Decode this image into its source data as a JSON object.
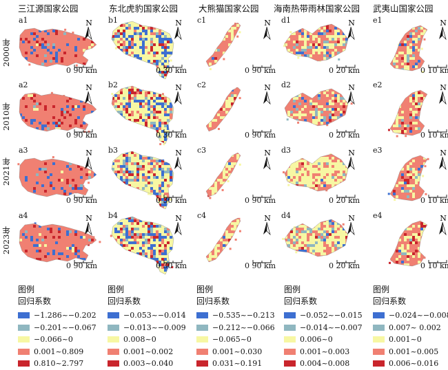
{
  "colors": [
    "#3d6fd1",
    "#8fb7c0",
    "#f7f7a3",
    "#f08072",
    "#c9252c"
  ],
  "parks": [
    {
      "id": "sjy",
      "title": "三江源国家公园",
      "letter": "a",
      "scale_text": "0 90 km",
      "legend": {
        "title": "图例",
        "subtitle": "回归系数",
        "items": [
          "−1.286~−0.202",
          "−0.201~−0.067",
          "−0.066~0",
          "0.001~0.809",
          "0.810~2.797"
        ]
      }
    },
    {
      "id": "dbhb",
      "title": "东北虎豹国家公园",
      "letter": "b",
      "scale_text": "0 30 km",
      "legend": {
        "title": "图例",
        "subtitle": "回归系数",
        "items": [
          "−0.053~−0.014",
          "−0.013~−0.009",
          "0.008~0",
          "0.001~0.002",
          "0.003~0.040"
        ]
      }
    },
    {
      "id": "dxm",
      "title": "大熊猫国家公园",
      "letter": "c",
      "scale_text": "0 90 km",
      "legend": {
        "title": "图例",
        "subtitle": "回归系数",
        "items": [
          "−0.535~−0.213",
          "−0.212~−0.066",
          "−0.065~0",
          "0.001~0.030",
          "0.031~0.191"
        ]
      }
    },
    {
      "id": "hnrd",
      "title": "海南热带雨林国家公园",
      "letter": "d",
      "scale_text": "0 20 km",
      "legend": {
        "title": "图例",
        "subtitle": "回归系数",
        "items": [
          "−0.052~−0.015",
          "−0.014~−0.007",
          "0.006~0",
          "0.001~0.003",
          "0.004~0.008"
        ]
      }
    },
    {
      "id": "wys",
      "title": "武夷山国家公园",
      "letter": "e",
      "scale_text": "0 10 km",
      "legend": {
        "title": "图例",
        "subtitle": "回归系数",
        "items": [
          "−0.024~−0.008",
          "0.007~ 0.002",
          "0.001~0",
          "0.001~0.005",
          "0.006~0.016"
        ]
      }
    }
  ],
  "years": [
    {
      "num": "1",
      "label": "2000年"
    },
    {
      "num": "2",
      "label": "2010年"
    },
    {
      "num": "3",
      "label": "2021年"
    },
    {
      "num": "4",
      "label": "2023年"
    }
  ],
  "north_label": "N"
}
